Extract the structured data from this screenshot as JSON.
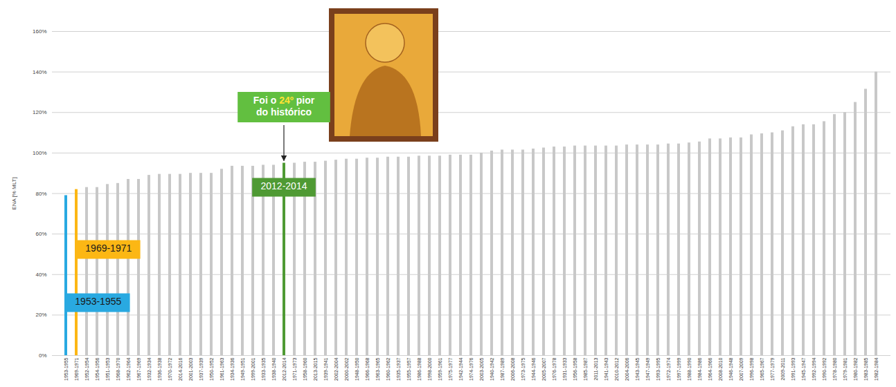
{
  "chart_data": {
    "type": "bar",
    "y_label": "ENA [% MLT]",
    "categories": [
      "1953-1955",
      "1969-1971",
      "1952-1954",
      "1954-1956",
      "1951-1953",
      "1968-1970",
      "1962-1964",
      "1967-1969",
      "1932-1934",
      "1936-1938",
      "1970-1972",
      "2014-2016",
      "2001-2003",
      "1937-1939",
      "1950-1952",
      "1961-1963",
      "1934-1936",
      "1949-1951",
      "1999-2001",
      "1933-1935",
      "1938-1940",
      "2012-2014",
      "1971-1973",
      "1958-1960",
      "2013-2015",
      "1939-1941",
      "2002-2004",
      "2000-2002",
      "1948-1950",
      "1966-1968",
      "1963-1965",
      "1960-1962",
      "1935-1937",
      "1955-1957",
      "1986-1988",
      "1998-2000",
      "1959-1961",
      "1975-1977",
      "1942-1944",
      "1974-1976",
      "2003-2005",
      "1940-1942",
      "1987-1989",
      "2006-2008",
      "1973-1975",
      "1944-1946",
      "2005-2007",
      "1976-1978",
      "1931-1933",
      "1956-1958",
      "1985-1987",
      "2011-2013",
      "1941-1943",
      "2010-2012",
      "2004-2006",
      "1943-1945",
      "1947-1949",
      "1993-1995",
      "1972-1974",
      "1997-1999",
      "1988-1990",
      "1984-1986",
      "1964-1966",
      "2008-2010",
      "1946-1948",
      "2007-2009",
      "1996-1998",
      "1965-1967",
      "1977-1979",
      "2009-2011",
      "1991-1993",
      "1945-1947",
      "1992-1994",
      "1990-1992",
      "1978-1980",
      "1979-1981",
      "1980-1982",
      "1983-1985",
      "1982-1984"
    ],
    "values": [
      79,
      82,
      83,
      83,
      84.5,
      85,
      87,
      87,
      89,
      89.5,
      89.5,
      89.5,
      90,
      90,
      90,
      92,
      93.5,
      93.5,
      93.5,
      94,
      94,
      95,
      95,
      95.5,
      95.5,
      96,
      96.5,
      97,
      97,
      97.5,
      97.5,
      98,
      98,
      98,
      98.5,
      98.5,
      98.5,
      99,
      99,
      99,
      100,
      101,
      101.5,
      101.5,
      101.5,
      102,
      102.5,
      103,
      103,
      103.5,
      103.5,
      103.5,
      103.5,
      103.5,
      104,
      104,
      104,
      104,
      104.5,
      104.5,
      105,
      105.5,
      107,
      107,
      107.5,
      107.5,
      109,
      109.5,
      110,
      111,
      113,
      114,
      114,
      115.5,
      119,
      120,
      125,
      131.5,
      140
    ],
    "colors": [
      "#29a9e1",
      "#fcb714",
      "#c8c8c8",
      "#c8c8c8",
      "#c8c8c8",
      "#c8c8c8",
      "#c8c8c8",
      "#c8c8c8",
      "#c8c8c8",
      "#c8c8c8",
      "#c8c8c8",
      "#c8c8c8",
      "#c8c8c8",
      "#c8c8c8",
      "#c8c8c8",
      "#c8c8c8",
      "#c8c8c8",
      "#c8c8c8",
      "#c8c8c8",
      "#c8c8c8",
      "#c8c8c8",
      "#4f9a34",
      "#c8c8c8",
      "#c8c8c8",
      "#c8c8c8",
      "#c8c8c8",
      "#c8c8c8",
      "#c8c8c8",
      "#c8c8c8",
      "#c8c8c8",
      "#c8c8c8",
      "#c8c8c8",
      "#c8c8c8",
      "#c8c8c8",
      "#c8c8c8",
      "#c8c8c8",
      "#c8c8c8",
      "#c8c8c8",
      "#c8c8c8",
      "#c8c8c8",
      "#c8c8c8",
      "#c8c8c8",
      "#c8c8c8",
      "#c8c8c8",
      "#c8c8c8",
      "#c8c8c8",
      "#c8c8c8",
      "#c8c8c8",
      "#c8c8c8",
      "#c8c8c8",
      "#c8c8c8",
      "#c8c8c8",
      "#c8c8c8",
      "#c8c8c8",
      "#c8c8c8",
      "#c8c8c8",
      "#c8c8c8",
      "#c8c8c8",
      "#c8c8c8",
      "#c8c8c8",
      "#c8c8c8",
      "#c8c8c8",
      "#c8c8c8",
      "#c8c8c8",
      "#c8c8c8",
      "#c8c8c8",
      "#c8c8c8",
      "#c8c8c8",
      "#c8c8c8",
      "#c8c8c8",
      "#c8c8c8",
      "#c8c8c8",
      "#c8c8c8",
      "#c8c8c8",
      "#c8c8c8",
      "#c8c8c8",
      "#c8c8c8",
      "#c8c8c8",
      "#c8c8c8"
    ],
    "ylim": [
      0,
      160
    ],
    "yticks": [
      {
        "value": 0,
        "label": "0%"
      },
      {
        "value": 20,
        "label": "20%"
      },
      {
        "value": 40,
        "label": "40%"
      },
      {
        "value": 60,
        "label": "60%"
      },
      {
        "value": 80,
        "label": "80%"
      },
      {
        "value": 100,
        "label": "100%"
      },
      {
        "value": 120,
        "label": "120%"
      },
      {
        "value": 140,
        "label": "140%"
      },
      {
        "value": 160,
        "label": "160%"
      }
    ],
    "grid": true,
    "annotations": [
      {
        "text": "Foi o 24º pior do histórico",
        "category": "2012-2014"
      },
      {
        "text": "2012-2014",
        "category": "2012-2014"
      },
      {
        "text": "1969-1971",
        "category": "1969-1971"
      },
      {
        "text": "1953-1955",
        "category": "1953-1955"
      }
    ]
  }
}
